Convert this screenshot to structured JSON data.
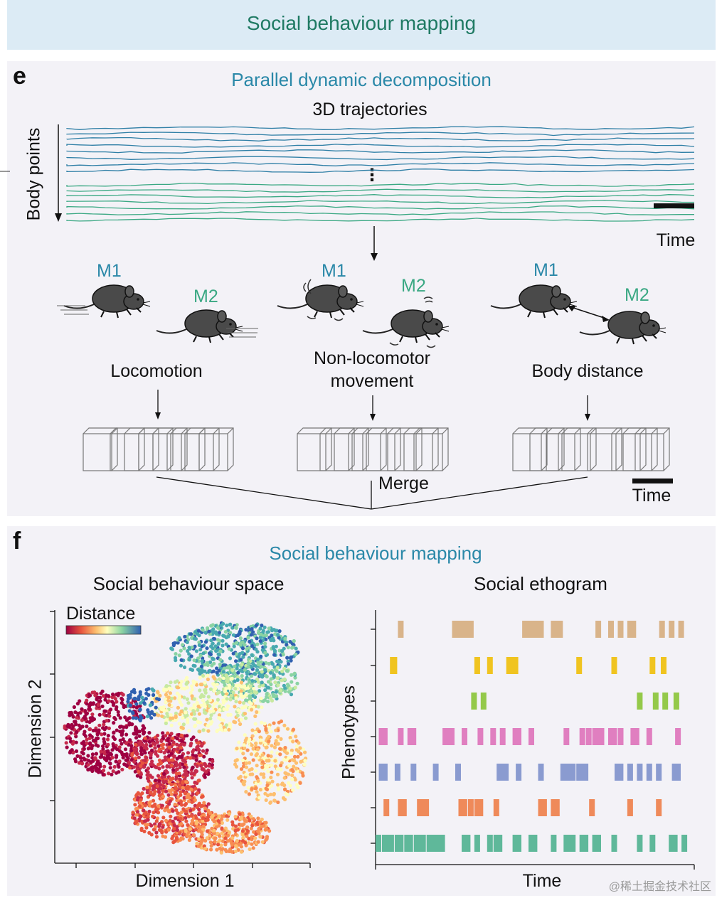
{
  "header": {
    "title": "Social behaviour mapping"
  },
  "panel_e": {
    "label": "e",
    "title": "Parallel dynamic decomposition",
    "trajectories_title": "3D trajectories",
    "y_axis_label": "Body points",
    "time_label_top": "Time",
    "time_label_bottom": "Time",
    "merge_label": "Merge",
    "ellipsis": "⋮",
    "columns": [
      {
        "m1": "M1",
        "m2": "M2",
        "label_lines": [
          "Locomotion"
        ]
      },
      {
        "m1": "M1",
        "m2": "M2",
        "label_lines": [
          "Non-locomotor",
          "movement"
        ]
      },
      {
        "m1": "M1",
        "m2": "M2",
        "label_lines": [
          "Body distance"
        ]
      }
    ],
    "colors": {
      "blue_traj": "#2f7fa6",
      "green_traj": "#3aa883",
      "mouse_label_blue": "#2a88a8",
      "mouse_label_green": "#3aa883"
    }
  },
  "panel_f": {
    "label": "f",
    "title": "Social behaviour mapping",
    "space": {
      "title": "Social behaviour space",
      "legend_label": "Distance",
      "x_label": "Dimension 1",
      "y_label": "Dimension 2"
    },
    "ethogram": {
      "title": "Social ethogram",
      "x_label": "Time",
      "y_label": "Phenotypes",
      "rows": [
        {
          "color": "#d9b48a",
          "events": [
            [
              0.07,
              0.09
            ],
            [
              0.24,
              0.31
            ],
            [
              0.46,
              0.53
            ],
            [
              0.55,
              0.59
            ],
            [
              0.69,
              0.71
            ],
            [
              0.73,
              0.75
            ],
            [
              0.76,
              0.78
            ],
            [
              0.79,
              0.82
            ],
            [
              0.89,
              0.91
            ],
            [
              0.92,
              0.94
            ],
            [
              0.95,
              0.97
            ]
          ]
        },
        {
          "color": "#f0c420",
          "events": [
            [
              0.045,
              0.07
            ],
            [
              0.31,
              0.33
            ],
            [
              0.35,
              0.37
            ],
            [
              0.41,
              0.45
            ],
            [
              0.63,
              0.65
            ],
            [
              0.74,
              0.76
            ],
            [
              0.86,
              0.88
            ],
            [
              0.895,
              0.915
            ]
          ]
        },
        {
          "color": "#94c94a",
          "events": [
            [
              0.3,
              0.32
            ],
            [
              0.33,
              0.35
            ],
            [
              0.82,
              0.84
            ],
            [
              0.87,
              0.89
            ],
            [
              0.9,
              0.92
            ],
            [
              0.935,
              0.955
            ]
          ]
        },
        {
          "color": "#e07fc0",
          "events": [
            [
              0.01,
              0.04
            ],
            [
              0.07,
              0.09
            ],
            [
              0.1,
              0.13
            ],
            [
              0.21,
              0.25
            ],
            [
              0.27,
              0.29
            ],
            [
              0.32,
              0.34
            ],
            [
              0.36,
              0.38
            ],
            [
              0.39,
              0.41
            ],
            [
              0.43,
              0.46
            ],
            [
              0.48,
              0.5
            ],
            [
              0.59,
              0.61
            ],
            [
              0.64,
              0.66
            ],
            [
              0.66,
              0.68
            ],
            [
              0.68,
              0.72
            ],
            [
              0.73,
              0.76
            ],
            [
              0.76,
              0.78
            ],
            [
              0.8,
              0.83
            ],
            [
              0.85,
              0.87
            ],
            [
              0.94,
              0.96
            ]
          ]
        },
        {
          "color": "#8a9bd0",
          "events": [
            [
              0.01,
              0.04
            ],
            [
              0.06,
              0.08
            ],
            [
              0.11,
              0.13
            ],
            [
              0.18,
              0.2
            ],
            [
              0.25,
              0.27
            ],
            [
              0.38,
              0.42
            ],
            [
              0.44,
              0.46
            ],
            [
              0.51,
              0.53
            ],
            [
              0.58,
              0.63
            ],
            [
              0.63,
              0.67
            ],
            [
              0.75,
              0.78
            ],
            [
              0.79,
              0.81
            ],
            [
              0.82,
              0.84
            ],
            [
              0.85,
              0.87
            ],
            [
              0.88,
              0.9
            ],
            [
              0.93,
              0.96
            ]
          ]
        },
        {
          "color": "#ef8a5a",
          "events": [
            [
              0.025,
              0.045
            ],
            [
              0.07,
              0.1
            ],
            [
              0.13,
              0.17
            ],
            [
              0.26,
              0.29
            ],
            [
              0.29,
              0.31
            ],
            [
              0.31,
              0.34
            ],
            [
              0.37,
              0.39
            ],
            [
              0.51,
              0.54
            ],
            [
              0.55,
              0.58
            ],
            [
              0.67,
              0.69
            ],
            [
              0.79,
              0.81
            ],
            [
              0.88,
              0.9
            ]
          ]
        },
        {
          "color": "#5fb89a",
          "events": [
            [
              0.0,
              0.02
            ],
            [
              0.02,
              0.06
            ],
            [
              0.06,
              0.09
            ],
            [
              0.09,
              0.12
            ],
            [
              0.12,
              0.16
            ],
            [
              0.16,
              0.22
            ],
            [
              0.27,
              0.3
            ],
            [
              0.31,
              0.33
            ],
            [
              0.35,
              0.37
            ],
            [
              0.37,
              0.4
            ],
            [
              0.43,
              0.46
            ],
            [
              0.48,
              0.51
            ],
            [
              0.55,
              0.57
            ],
            [
              0.59,
              0.63
            ],
            [
              0.64,
              0.67
            ],
            [
              0.68,
              0.71
            ],
            [
              0.74,
              0.76
            ],
            [
              0.82,
              0.84
            ],
            [
              0.86,
              0.88
            ],
            [
              0.92,
              0.95
            ],
            [
              0.96,
              0.98
            ]
          ]
        }
      ]
    }
  },
  "watermark": "@稀土掘金技术社区"
}
